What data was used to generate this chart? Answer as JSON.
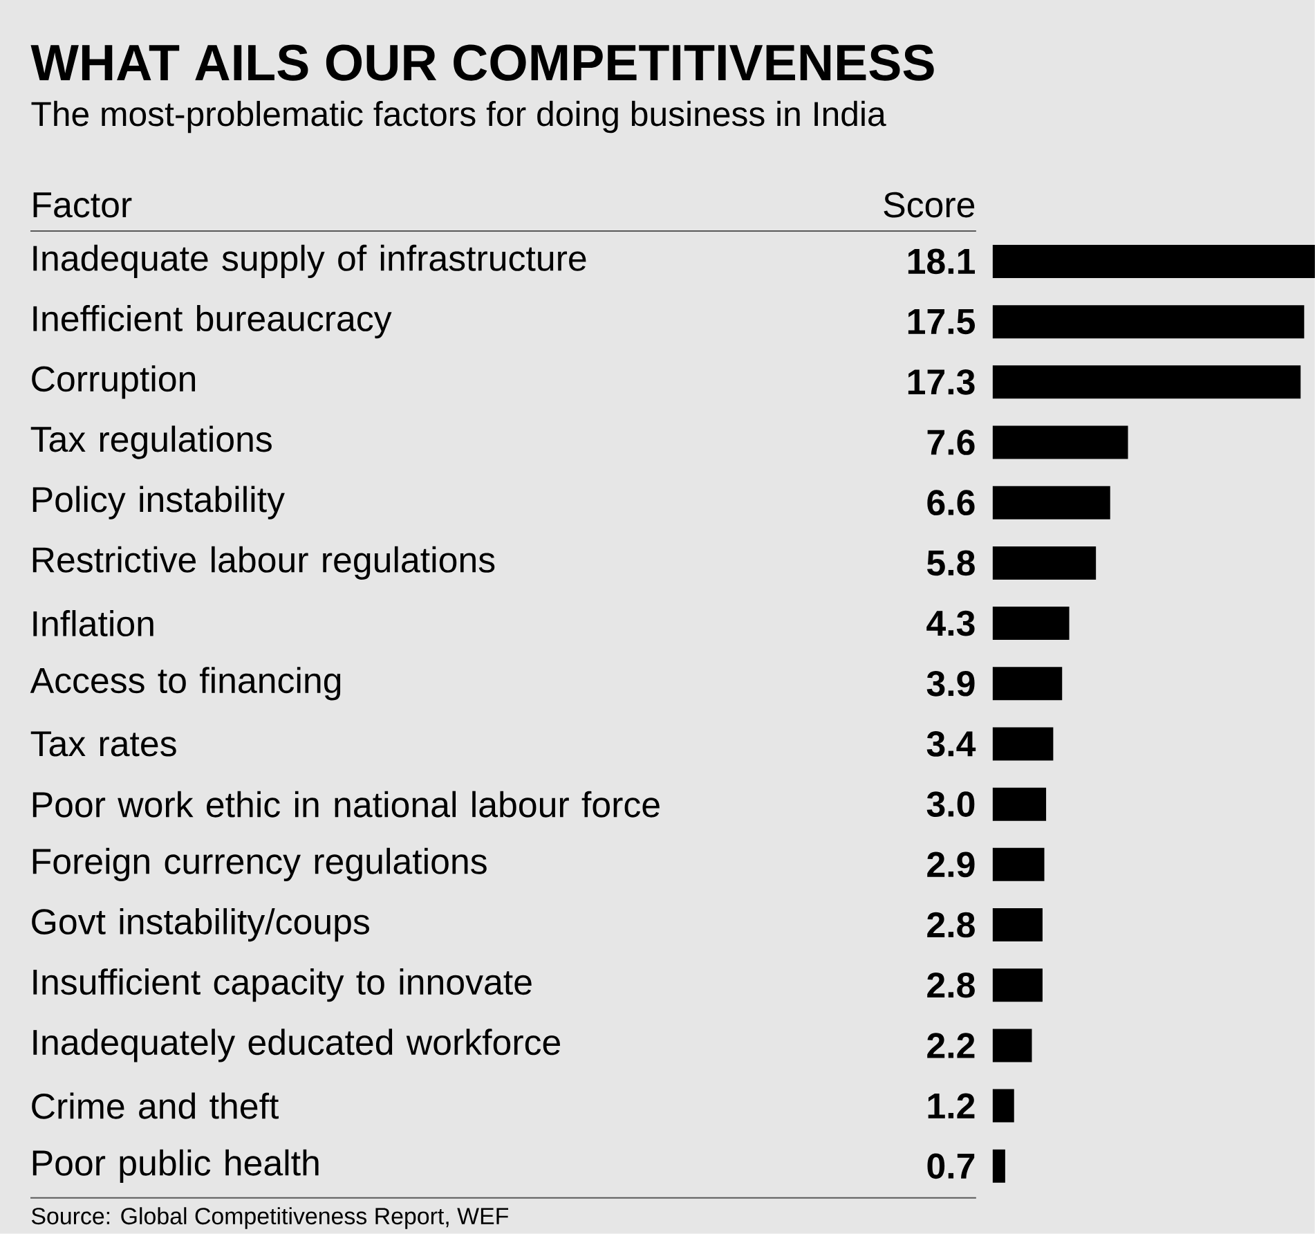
{
  "chart_data": {
    "type": "bar",
    "orientation": "horizontal",
    "title": "WHAT AILS OUR COMPETITIVENESS",
    "subtitle": "The most-problematic factors for doing business in India",
    "categories": [
      "Inadequate supply of infrastructure",
      "Inefficient bureaucracy",
      "Corruption",
      "Tax regulations",
      "Policy instability",
      "Restrictive labour regulations",
      "Inflation",
      "Access to financing",
      "Tax rates",
      "Poor work ethic in national labour force",
      "Foreign currency regulations",
      "Govt instability/coups",
      "Insufficient capacity to innovate",
      "Inadequately educated workforce",
      "Crime and theft",
      "Poor public health"
    ],
    "values": [
      18.1,
      17.5,
      17.3,
      7.6,
      6.6,
      5.8,
      4.3,
      3.9,
      3.4,
      3.0,
      2.9,
      2.8,
      2.8,
      2.2,
      1.2,
      0.7
    ],
    "value_labels": [
      "18.1",
      "17.5",
      "17.3",
      "7.6",
      "6.6",
      "5.8",
      "4.3",
      "3.9",
      "3.4",
      "3.0",
      "2.9",
      "2.8",
      "2.8",
      "2.2",
      "1.2",
      "0.7"
    ],
    "color": "#000000",
    "annotations": [
      "Factor",
      "Score",
      "Source: Global Competitiveness Report, WEF"
    ]
  }
}
